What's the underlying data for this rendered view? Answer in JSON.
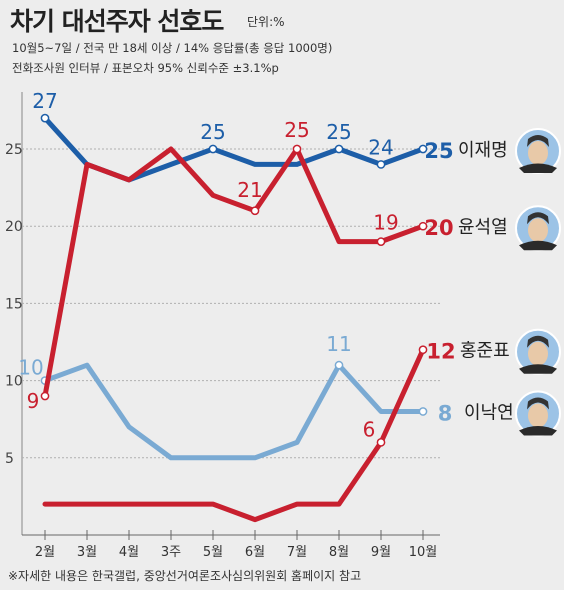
{
  "header": {
    "title": "차기 대선주자 선호도",
    "unit": "단위:%",
    "subtitle_line1": "10월5~7일 / 전국 만 18세 이상 / 14% 응답률(총 응답 1000명)",
    "subtitle_line2": "전화조사원 인터뷰 / 표본오차 95% 신뢰수준 ±3.1%p"
  },
  "footer": {
    "note": "※자세한 내용은 한국갤럽, 중앙선거여론조사심의위원회 홈페이지 참고"
  },
  "colors": {
    "이재명": "#1d5ea8",
    "윤석열": "#c8202f",
    "홍준표": "#c8202f",
    "이낙연": "#7aaad3",
    "grid": "#b0b0b0",
    "background": "#ededed"
  },
  "chart_data": {
    "type": "line",
    "categories": [
      "2월",
      "3월",
      "4월",
      "3주",
      "5월",
      "6월",
      "7월",
      "8월",
      "9월",
      "10월"
    ],
    "ylim": [
      0,
      28
    ],
    "yticks": [
      5,
      10,
      15,
      20,
      25
    ],
    "grid": "horizontal",
    "legend": "right, labels beside each line end with portrait",
    "series": [
      {
        "name": "이재명",
        "values": [
          27,
          24,
          23,
          24,
          25,
          24,
          24,
          25,
          24,
          25
        ],
        "labeled": {
          "0": "27",
          "4": "25",
          "7": "25",
          "8": "24"
        },
        "end_value": "25",
        "end_label": "이재명"
      },
      {
        "name": "윤석열",
        "values": [
          9,
          24,
          23,
          25,
          22,
          21,
          25,
          19,
          19,
          20
        ],
        "labeled": {
          "0": "9",
          "5": "21",
          "6": "25",
          "8": "19"
        },
        "end_value": "20",
        "end_label": "윤석열"
      },
      {
        "name": "홍준표",
        "values": [
          2,
          2,
          2,
          2,
          2,
          1,
          2,
          2,
          6,
          12
        ],
        "labeled": {
          "8": "6"
        },
        "end_value": "12",
        "end_label": "홍준표"
      },
      {
        "name": "이낙연",
        "values": [
          10,
          11,
          7,
          5,
          5,
          5,
          6,
          11,
          8,
          8
        ],
        "labeled": {
          "0": "10",
          "7": "11"
        },
        "end_value": "8",
        "end_label": "이낙연"
      }
    ]
  }
}
